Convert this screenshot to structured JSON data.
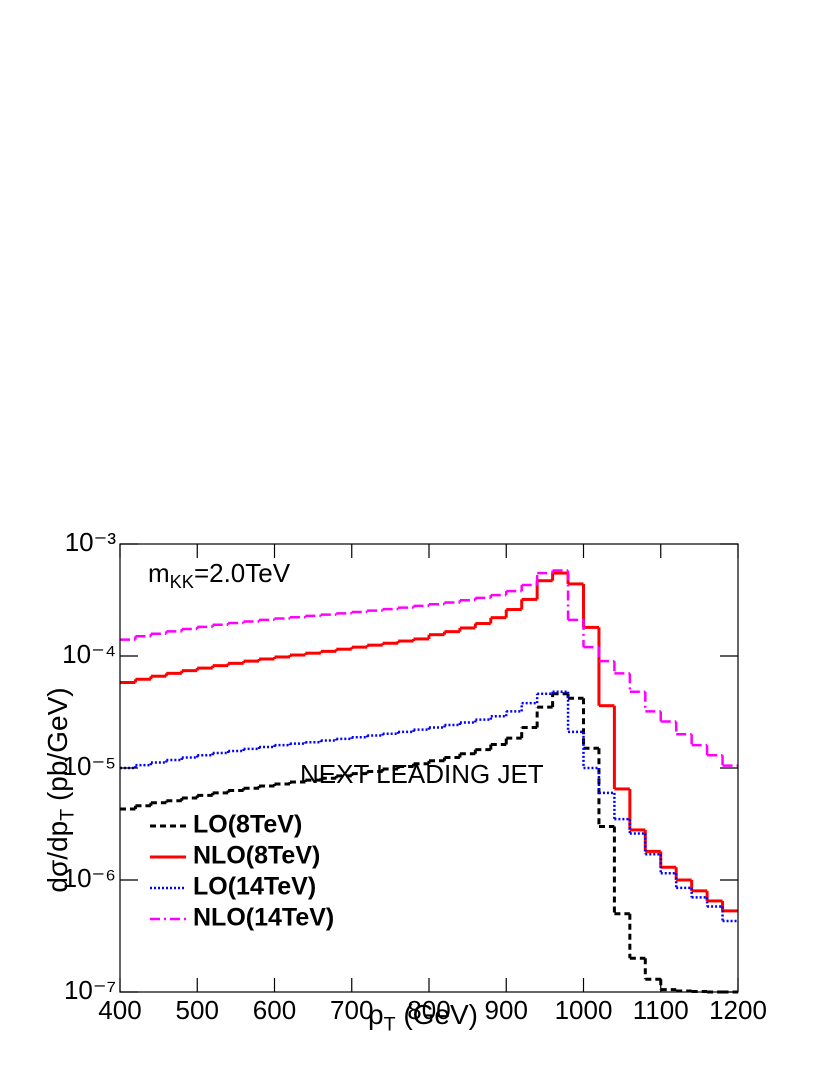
{
  "chart_data": {
    "type": "histogram",
    "annotation": [
      "m",
      "KK",
      "=2.0TeV"
    ],
    "text": "NEXT LEADING JET",
    "xlabel": [
      "p",
      "T",
      " (GeV)"
    ],
    "ylabel": [
      "dσ/dp",
      "T",
      " (pb/GeV)"
    ],
    "log_y": true,
    "legend": "lower left",
    "xlim": [
      400,
      1200
    ],
    "xticks": [
      400,
      500,
      600,
      700,
      800,
      900,
      1000,
      1100,
      1200
    ],
    "ylim": [
      1e-07,
      0.001
    ],
    "yticks": [
      {
        "value": 1e-07,
        "label": "10⁻⁷"
      },
      {
        "value": 1e-06,
        "label": "10⁻⁶"
      },
      {
        "value": 1e-05,
        "label": "10⁻⁵"
      },
      {
        "value": 0.0001,
        "label": "10⁻⁴"
      },
      {
        "value": 0.001,
        "label": "10⁻³"
      }
    ],
    "bins": [
      400,
      420,
      440,
      460,
      480,
      500,
      520,
      540,
      560,
      580,
      600,
      620,
      640,
      660,
      680,
      700,
      720,
      740,
      760,
      780,
      800,
      820,
      840,
      860,
      880,
      900,
      920,
      940,
      960,
      980,
      1000,
      1020,
      1040,
      1060,
      1080,
      1100,
      1120,
      1140,
      1160,
      1180,
      1200
    ],
    "series": [
      {
        "name": "LO(8TeV)",
        "color": "#000000",
        "style": "dashed",
        "values": [
          4.3e-06,
          4.6e-06,
          4.9e-06,
          5.1e-06,
          5.4e-06,
          5.7e-06,
          6e-06,
          6.3e-06,
          6.6e-06,
          6.9e-06,
          7.2e-06,
          7.5e-06,
          7.8e-06,
          8.1e-06,
          8.5e-06,
          8.9e-06,
          9.3e-06,
          9.8e-06,
          1.03e-05,
          1.09e-05,
          1.16e-05,
          1.24e-05,
          1.34e-05,
          1.46e-05,
          1.62e-05,
          1.85e-05,
          2.3e-05,
          3.5e-05,
          4.6e-05,
          4.2e-05,
          1.5e-05,
          3e-06,
          5e-07,
          2e-07,
          1.3e-07,
          1.05e-07,
          1.02e-07,
          1.01e-07,
          1e-07,
          1e-07
        ]
      },
      {
        "name": "NLO(8TeV)",
        "color": "#ff0000",
        "style": "solid",
        "values": [
          5.8e-05,
          6.2e-05,
          6.6e-05,
          7e-05,
          7.4e-05,
          7.8e-05,
          8.2e-05,
          8.6e-05,
          9e-05,
          9.4e-05,
          9.8e-05,
          0.000102,
          0.000106,
          0.00011,
          0.000115,
          0.00012,
          0.000125,
          0.00013,
          0.000136,
          0.000142,
          0.000155,
          0.000165,
          0.000178,
          0.000195,
          0.00022,
          0.00026,
          0.00032,
          0.00047,
          0.00055,
          0.00044,
          0.00018,
          3.6e-05,
          6.5e-06,
          2.8e-06,
          1.8e-06,
          1.3e-06,
          1e-06,
          8e-07,
          6.5e-07,
          5.3e-07
        ]
      },
      {
        "name": "LO(14TeV)",
        "color": "#0000ff",
        "style": "dotted",
        "values": [
          1e-05,
          1.06e-05,
          1.12e-05,
          1.18e-05,
          1.24e-05,
          1.3e-05,
          1.36e-05,
          1.42e-05,
          1.48e-05,
          1.54e-05,
          1.6e-05,
          1.65e-05,
          1.7e-05,
          1.76e-05,
          1.82e-05,
          1.88e-05,
          1.95e-05,
          2.02e-05,
          2.1e-05,
          2.2e-05,
          2.3e-05,
          2.42e-05,
          2.55e-05,
          2.7e-05,
          2.9e-05,
          3.2e-05,
          3.8e-05,
          4.6e-05,
          4.8e-05,
          2.1e-05,
          1e-05,
          6e-06,
          3.5e-06,
          2.6e-06,
          1.7e-06,
          1.15e-06,
          8.5e-07,
          7e-07,
          5.8e-07,
          4.3e-07
        ]
      },
      {
        "name": "NLO(14TeV)",
        "color": "#ff00ff",
        "style": "dashdot",
        "values": [
          0.00014,
          0.00015,
          0.000158,
          0.000166,
          0.000174,
          0.000182,
          0.00019,
          0.000197,
          0.000203,
          0.00021,
          0.000216,
          0.000222,
          0.000228,
          0.000234,
          0.00024,
          0.000247,
          0.000254,
          0.000262,
          0.00027,
          0.00028,
          0.00029,
          0.0003,
          0.000315,
          0.00033,
          0.00035,
          0.00038,
          0.00043,
          0.00055,
          0.00058,
          0.00021,
          0.00012,
          9e-05,
          7e-05,
          4.8e-05,
          3.2e-05,
          2.6e-05,
          2e-05,
          1.6e-05,
          1.3e-05,
          1.05e-05
        ]
      }
    ]
  }
}
